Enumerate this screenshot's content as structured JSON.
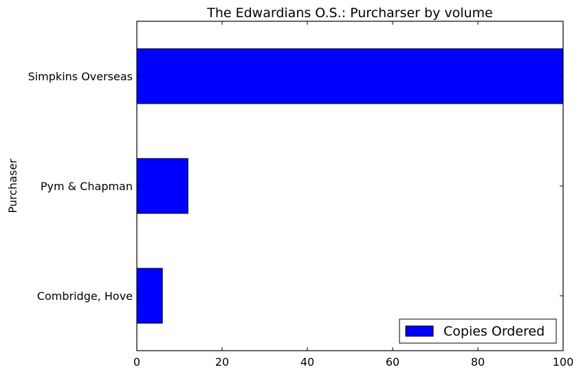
{
  "chart_data": {
    "type": "bar",
    "orientation": "horizontal",
    "title": "The Edwardians O.S.: Purcharser by volume",
    "xlabel": "",
    "ylabel": "Purchaser",
    "categories": [
      "Combridge, Hove",
      "Pym & Chapman",
      "Simpkins Overseas"
    ],
    "series": [
      {
        "name": "Copies Ordered",
        "values": [
          6,
          12,
          100
        ],
        "color": "#0000ff"
      }
    ],
    "xlim": [
      0,
      100
    ],
    "xticks": [
      0,
      20,
      40,
      60,
      80,
      100
    ],
    "grid": false,
    "legend_position": "lower-right"
  }
}
